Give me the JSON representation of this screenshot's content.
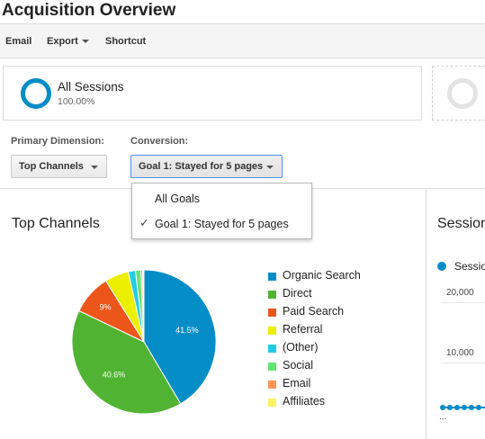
{
  "header": {
    "title": "Acquisition Overview"
  },
  "toolbar": {
    "email": "Email",
    "export": "Export",
    "shortcut": "Shortcut"
  },
  "segments": [
    {
      "name": "All Sessions",
      "percent": "100.00%",
      "color": "#058dc7"
    }
  ],
  "controls": {
    "primary_dimension_label": "Primary Dimension:",
    "primary_dimension_value": "Top Channels",
    "conversion_label": "Conversion:",
    "conversion_value": "Goal 1: Stayed for 5 pages"
  },
  "conversion_menu": {
    "items": [
      {
        "label": "All Goals",
        "checked": false
      },
      {
        "label": "Goal 1: Stayed for 5 pages",
        "checked": true
      }
    ],
    "check_glyph": "✓"
  },
  "top_channels": {
    "title": "Top Channels"
  },
  "sessions_panel": {
    "title": "Sessions",
    "legend_label": "Sessions",
    "y_ticks": [
      "20,000",
      "10,000"
    ],
    "truncated_label": "..."
  },
  "chart_data": {
    "type": "pie",
    "title": "Top Channels",
    "slices": [
      {
        "label": "Organic Search",
        "value": 41.5,
        "color": "#058dc7",
        "data_label": "41.5%"
      },
      {
        "label": "Direct",
        "value": 40.6,
        "color": "#50b432",
        "data_label": "40.6%"
      },
      {
        "label": "Paid Search",
        "value": 9.0,
        "color": "#ed561b",
        "data_label": "9%"
      },
      {
        "label": "Referral",
        "value": 5.4,
        "color": "#edef00",
        "data_label": ""
      },
      {
        "label": "(Other)",
        "value": 1.6,
        "color": "#24cbe5",
        "data_label": ""
      },
      {
        "label": "Social",
        "value": 1.2,
        "color": "#64e572",
        "data_label": ""
      },
      {
        "label": "Email",
        "value": 0.4,
        "color": "#ff9655",
        "data_label": ""
      },
      {
        "label": "Affiliates",
        "value": 0.3,
        "color": "#fff263",
        "data_label": ""
      }
    ],
    "legend_position": "right"
  }
}
